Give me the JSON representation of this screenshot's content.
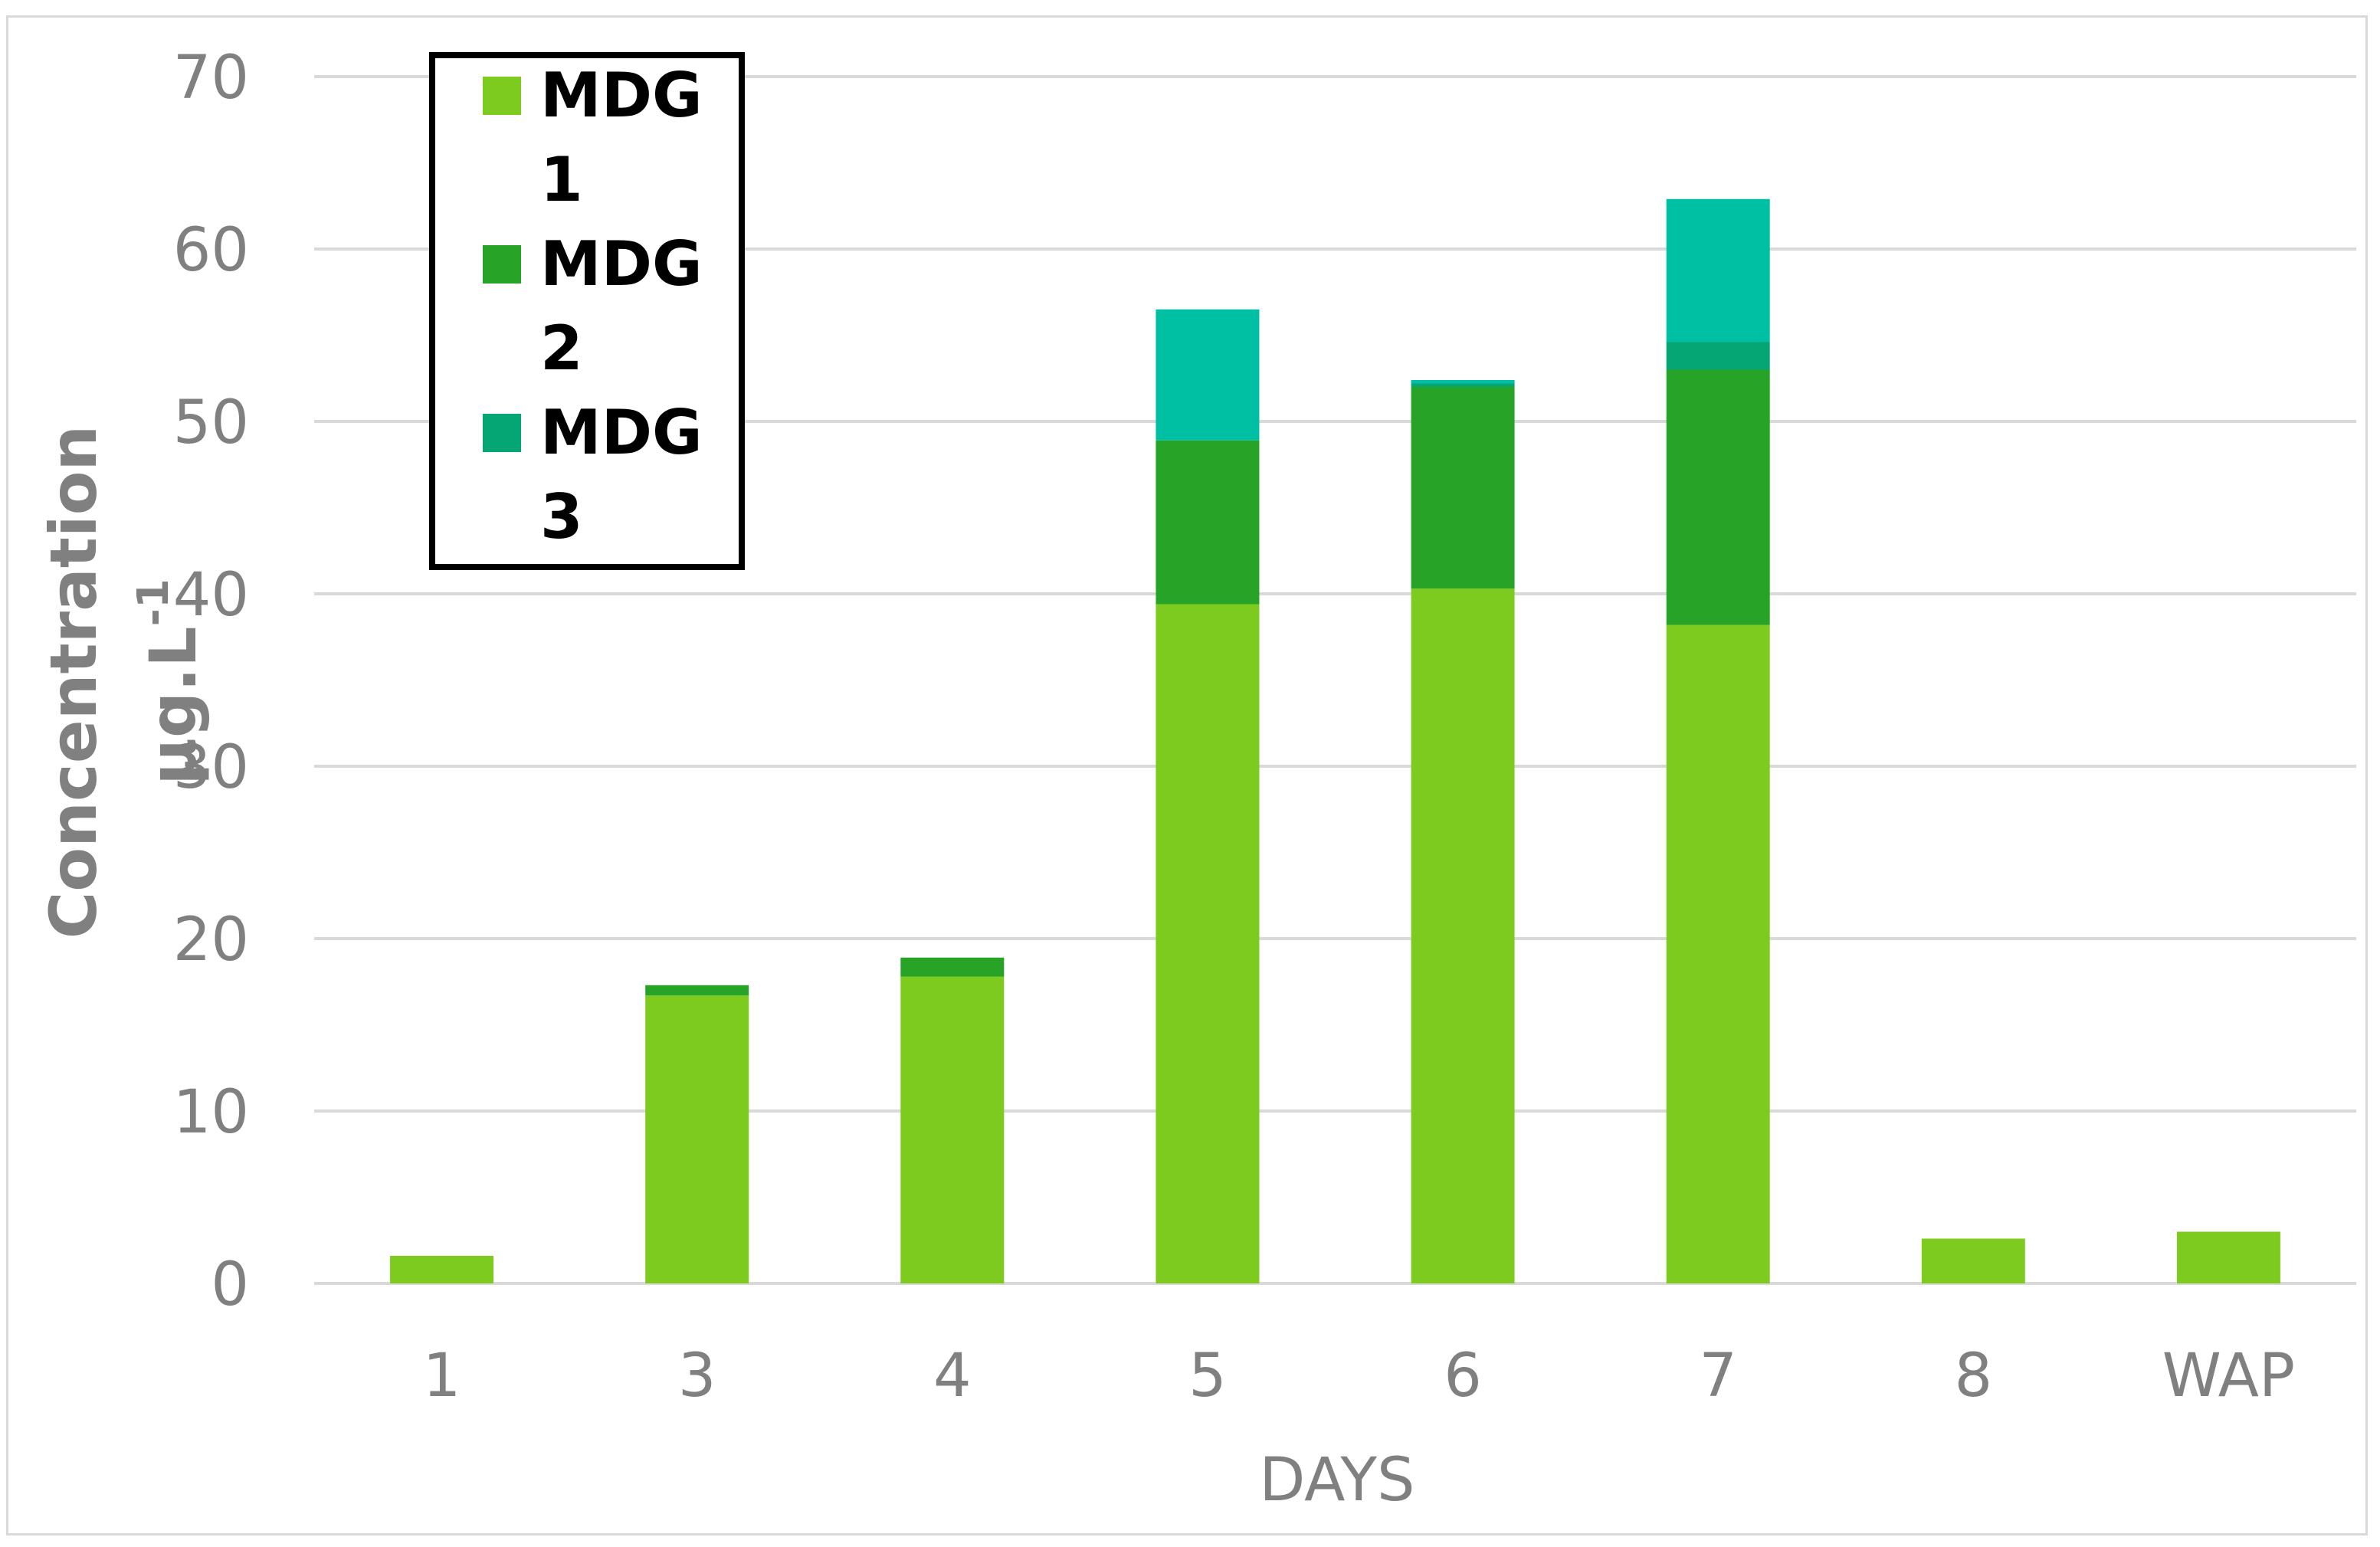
{
  "chart_data": {
    "type": "bar",
    "stacked": true,
    "categories": [
      "1",
      "3",
      "4",
      "5",
      "6",
      "7",
      "8",
      "WAP"
    ],
    "series": [
      {
        "name": "MDG 1",
        "color": "#7ecb1f",
        "values": [
          1.6,
          16.7,
          17.8,
          39.4,
          40.3,
          38.2,
          2.6,
          3.0
        ]
      },
      {
        "name": "MDG 2",
        "color": "#27a428",
        "values": [
          0,
          0.6,
          1.1,
          9.5,
          11.7,
          14.8,
          0,
          0
        ]
      },
      {
        "name": "MDG 3",
        "color": "#05a574",
        "values": [
          0,
          0,
          0,
          0,
          0.2,
          1.6,
          0,
          0
        ]
      },
      {
        "name": "",
        "color": "#00c0a4",
        "values": [
          0,
          0,
          0,
          7.6,
          0.2,
          8.3,
          0,
          0
        ]
      }
    ],
    "xlabel": "DAYS",
    "ylabel_line1": "Concentration",
    "ylabel_line2_main": "µg.L",
    "ylabel_line2_sup": "-1",
    "ylim": [
      0,
      70
    ],
    "yticks": [
      0,
      10,
      20,
      30,
      40,
      50,
      60,
      70
    ],
    "grid": true,
    "legend_placement": "top-left",
    "legend": [
      {
        "line1": "MDG",
        "line2": "1",
        "color": "#7ecb1f"
      },
      {
        "line1": "MDG",
        "line2": "2",
        "color": "#27a428"
      },
      {
        "line1": "MDG",
        "line2": "3",
        "color": "#05a574"
      }
    ]
  }
}
